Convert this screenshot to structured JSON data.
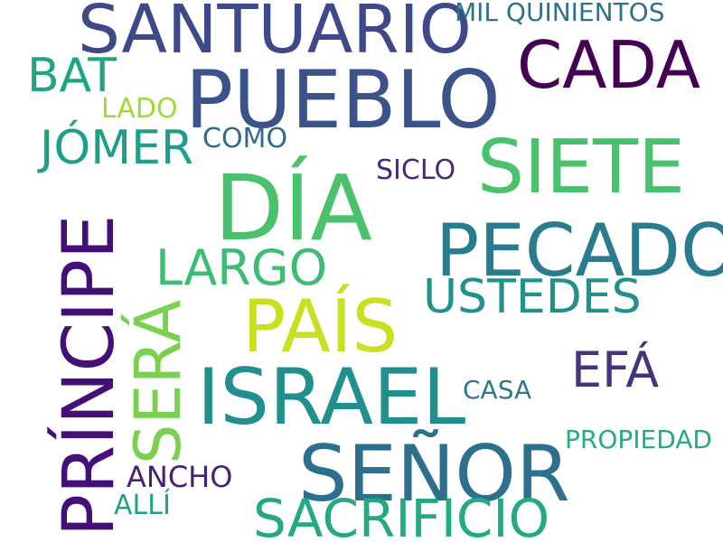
{
  "words": [
    {
      "text": "SANTUARIO",
      "color": "#3e4989"
    },
    {
      "text": "MIL QUINIENTOS",
      "color": "#2c728e"
    },
    {
      "text": "CADA",
      "color": "#440154"
    },
    {
      "text": "BAT",
      "color": "#20a486"
    },
    {
      "text": "PUEBLO",
      "color": "#3b528b"
    },
    {
      "text": "LADO",
      "color": "#a0da39"
    },
    {
      "text": "JÓMER",
      "color": "#1f9e89"
    },
    {
      "text": "COMO",
      "color": "#31688e"
    },
    {
      "text": "SICLO",
      "color": "#482878"
    },
    {
      "text": "SIETE",
      "color": "#4ac16d"
    },
    {
      "text": "DÍA",
      "color": "#4ac16d"
    },
    {
      "text": "PRÍNCIPE",
      "color": "#440f76"
    },
    {
      "text": "PECADO",
      "color": "#287c8e"
    },
    {
      "text": "LARGO",
      "color": "#3dbc74"
    },
    {
      "text": "USTEDES",
      "color": "#21918c"
    },
    {
      "text": "PAÍS",
      "color": "#c8e020"
    },
    {
      "text": "SERÁ",
      "color": "#7ad151"
    },
    {
      "text": "EFÁ",
      "color": "#46327e"
    },
    {
      "text": "ISRAEL",
      "color": "#21908d"
    },
    {
      "text": "CASA",
      "color": "#2a788e"
    },
    {
      "text": "PROPIEDAD",
      "color": "#25ab82"
    },
    {
      "text": "SEÑOR",
      "color": "#2d708e"
    },
    {
      "text": "ANCHO",
      "color": "#482173"
    },
    {
      "text": "ALLÍ",
      "color": "#1fa188"
    },
    {
      "text": "SACRIFICIO",
      "color": "#23a983"
    }
  ]
}
